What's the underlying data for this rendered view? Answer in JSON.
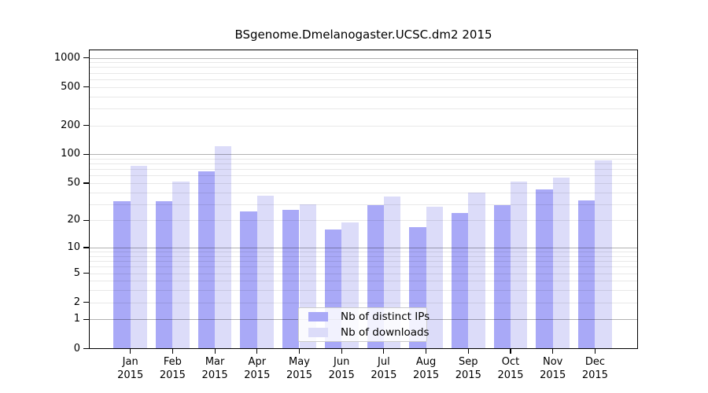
{
  "page": {
    "background_color": "#ffffff",
    "description_of_content": "Monthly download statistics bar chart for a Bioconductor package"
  },
  "chart_data": {
    "type": "bar",
    "title": "BSgenome.Dmelanogaster.UCSC.dm2 2015",
    "xlabel": "",
    "ylabel": "",
    "categories": [
      "Jan",
      "Feb",
      "Mar",
      "Apr",
      "May",
      "Jun",
      "Jul",
      "Aug",
      "Sep",
      "Oct",
      "Nov",
      "Dec"
    ],
    "category_year": "2015",
    "series": [
      {
        "name": "Nb of distinct IPs",
        "color": "#a9a9f7",
        "values": [
          32,
          32,
          66,
          25,
          26,
          16,
          29,
          17,
          24,
          29,
          43,
          33
        ]
      },
      {
        "name": "Nb of downloads",
        "color": "#dcdcf9",
        "values": [
          76,
          52,
          121,
          37,
          30,
          19,
          36,
          28,
          40,
          52,
          57,
          86
        ]
      }
    ],
    "y_scale": "log10(1+value)",
    "y_ticks": [
      0,
      1,
      2,
      5,
      10,
      20,
      50,
      100,
      200,
      500,
      1000
    ],
    "y_major_gridlines": [
      1,
      10,
      100,
      1000
    ],
    "y_minor_gridlines": [
      2,
      3,
      4,
      5,
      6,
      7,
      8,
      9,
      20,
      30,
      40,
      50,
      60,
      70,
      80,
      90,
      200,
      300,
      400,
      500,
      600,
      700,
      800,
      900
    ],
    "grid": true,
    "legend_position": "inside-bottom-center",
    "axis_color": "#000000",
    "major_grid_color": "rgba(0,0,0,0.30)",
    "minor_grid_color": "rgba(0,0,0,0.09)"
  }
}
